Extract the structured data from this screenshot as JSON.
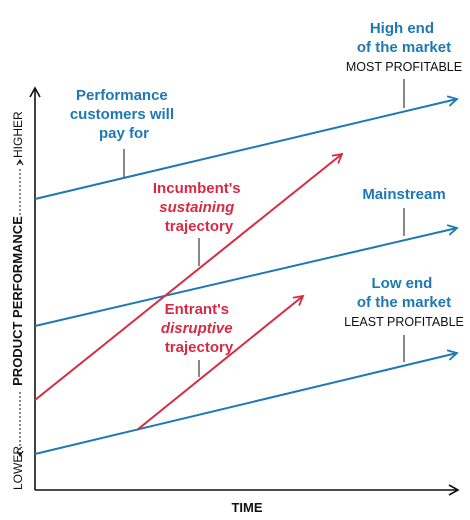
{
  "colors": {
    "market": "#1f78b4",
    "trajectory": "#d72b44",
    "axis": "#111111"
  },
  "axes": {
    "x_label": "TIME",
    "y_label": "PRODUCT PERFORMANCE",
    "y_low": "LOWER",
    "y_high": "HIGHER"
  },
  "market_lines": [
    {
      "title_lines": [
        "High end",
        "of the market"
      ],
      "note": "MOST PROFITABLE"
    },
    {
      "title_lines": [
        "Mainstream"
      ]
    },
    {
      "title_lines": [
        "Low end",
        "of the market"
      ],
      "note": "LEAST PROFITABLE"
    }
  ],
  "demand_label": [
    "Performance",
    "customers will",
    "pay for"
  ],
  "trajectories": [
    {
      "line1": "Incumbent's",
      "line2": "sustaining",
      "line3": "trajectory"
    },
    {
      "line1": "Entrant's",
      "line2": "disruptive",
      "line3": "trajectory"
    }
  ]
}
